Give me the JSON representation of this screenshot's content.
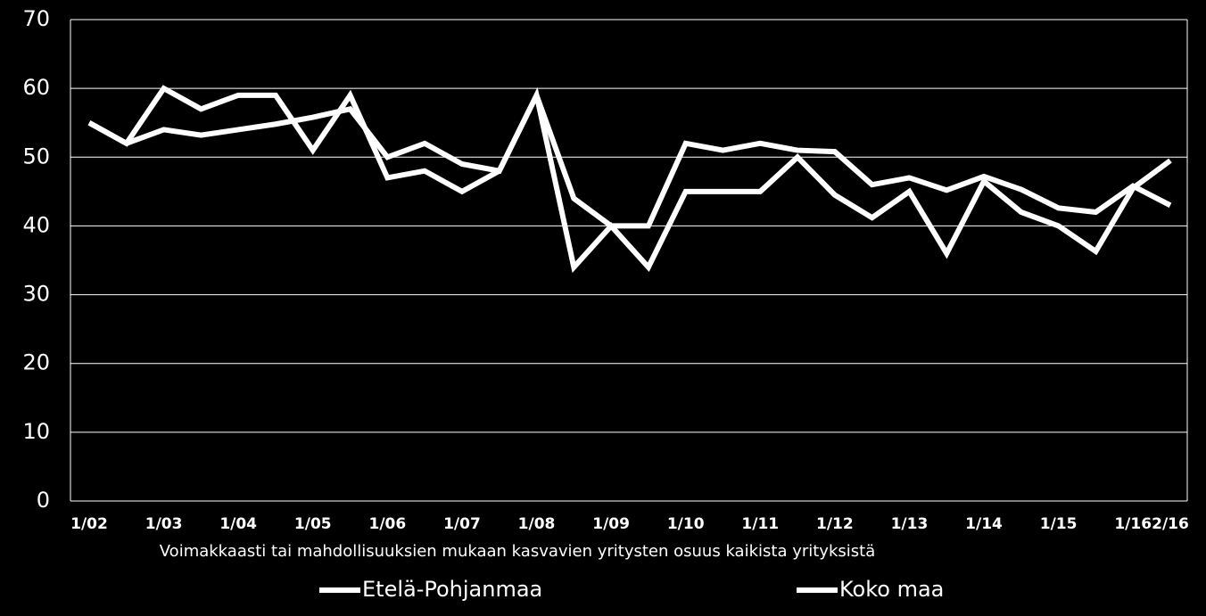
{
  "chart_data": {
    "type": "line",
    "x_label": "Voimakkaasti tai mahdollisuuksien mukaan kasvavien yritysten osuus kaikista yrityksistä",
    "categories": [
      "1/02",
      null,
      "1/03",
      null,
      "1/04",
      null,
      "1/05",
      null,
      "1/06",
      null,
      "1/07",
      null,
      "1/08",
      null,
      "1/09",
      null,
      "1/10",
      null,
      "1/11",
      null,
      "1/12",
      null,
      "1/13",
      null,
      "1/14",
      null,
      "1/15",
      null,
      "1/16",
      "2/16"
    ],
    "series": [
      {
        "name": "Etelä-Pohjanmaa",
        "color": "#ffffff",
        "values": [
          55,
          52,
          60,
          57,
          59,
          59,
          51,
          59,
          47,
          48,
          45,
          48,
          59,
          34,
          40,
          34,
          45,
          45,
          45,
          50,
          44.5,
          41.2,
          45,
          36,
          46.5,
          42,
          40,
          36.3,
          45.5,
          49.5
        ]
      },
      {
        "name": "Koko maa",
        "color": "#ffffff",
        "values": [
          55,
          52,
          54,
          53.2,
          54,
          54.8,
          55.8,
          57,
          50,
          52,
          49,
          48,
          59,
          44,
          40,
          40,
          52,
          51,
          52,
          51,
          50.8,
          46,
          47,
          45.2,
          47.2,
          45.3,
          42.6,
          42,
          45.8,
          43
        ]
      }
    ],
    "ylim": [
      0,
      70
    ],
    "yticks": [
      0,
      10,
      20,
      30,
      40,
      50,
      60,
      70
    ],
    "grid": true,
    "legend": "bottom"
  }
}
